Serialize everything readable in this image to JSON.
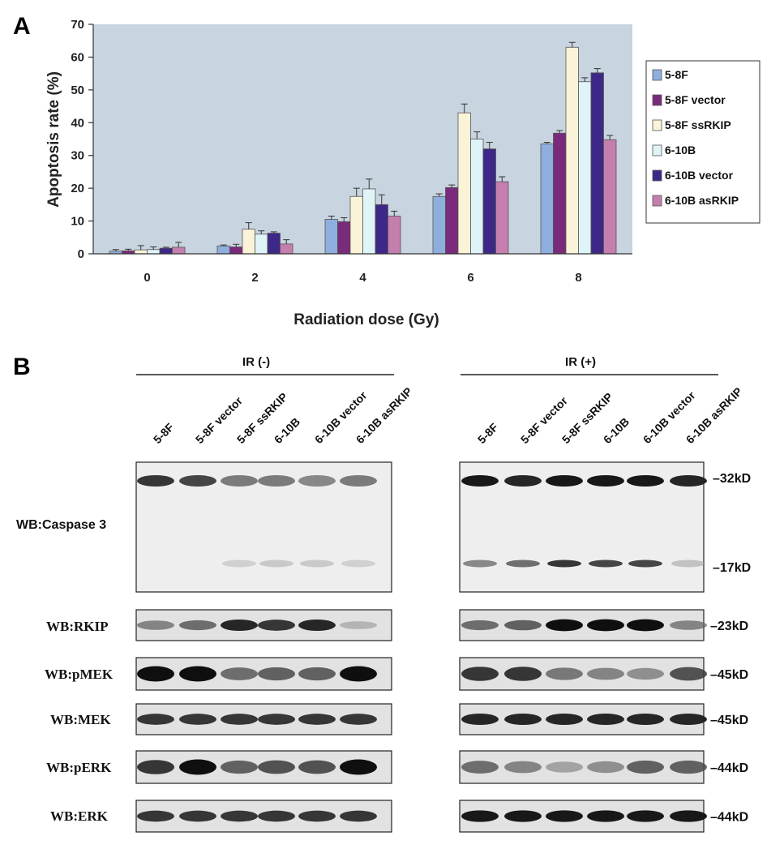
{
  "panel_a": {
    "letter": "A",
    "chart_data": {
      "type": "bar",
      "xlabel": "Radiation dose (Gy)",
      "ylabel": "Apoptosis rate (%)",
      "ylim": [
        0,
        70
      ],
      "yticks": [
        0,
        10,
        20,
        30,
        40,
        50,
        60,
        70
      ],
      "categories": [
        "0",
        "2",
        "4",
        "6",
        "8"
      ],
      "legend_position": "right",
      "grid": false,
      "plot_background": "#c8d4e0",
      "series": [
        {
          "name": "5-8F",
          "color": "#8eaedd",
          "values": [
            0.8,
            2.4,
            10.5,
            17.5,
            33.5
          ],
          "errors": [
            0.5,
            0.3,
            1.0,
            0.8,
            0.5
          ]
        },
        {
          "name": "5-8F vector",
          "color": "#7a2a7a",
          "values": [
            0.9,
            2.1,
            9.8,
            20.2,
            36.8
          ],
          "errors": [
            0.5,
            0.8,
            1.2,
            0.8,
            0.8
          ]
        },
        {
          "name": "5-8F ssRKIP",
          "color": "#fbf3d8",
          "values": [
            1.2,
            7.5,
            17.5,
            43.0,
            63.0
          ],
          "errors": [
            1.3,
            2.0,
            2.5,
            2.7,
            1.5
          ]
        },
        {
          "name": "6-10B",
          "color": "#dff4f7",
          "values": [
            1.3,
            6.0,
            19.8,
            35.0,
            52.5
          ],
          "errors": [
            0.8,
            1.0,
            3.0,
            2.2,
            1.2
          ]
        },
        {
          "name": "6-10B vector",
          "color": "#3e2887",
          "values": [
            1.7,
            6.3,
            15.0,
            32.0,
            55.2
          ],
          "errors": [
            0.3,
            0.4,
            3.0,
            2.0,
            1.3
          ]
        },
        {
          "name": "6-10B asRKIP",
          "color": "#c47fae",
          "values": [
            2.0,
            3.0,
            11.5,
            22.0,
            34.8
          ],
          "errors": [
            1.5,
            1.3,
            1.5,
            1.5,
            1.3
          ]
        }
      ]
    }
  },
  "panel_b": {
    "letter": "B",
    "groups": [
      "IR (-)",
      "IR (+)"
    ],
    "lanes": [
      "5-8F",
      "5-8F vector",
      "5-8F ssRKIP",
      "6-10B",
      "6-10B vector",
      "6-10B asRKIP"
    ],
    "blots": [
      {
        "label": "WB:Caspase 3",
        "kd": [
          "32kD",
          "17kD"
        ]
      },
      {
        "label": "WB:RKIP",
        "kd": [
          "23kD"
        ]
      },
      {
        "label": "WB:pMEK",
        "kd": [
          "45kD"
        ]
      },
      {
        "label": "WB:MEK",
        "kd": [
          "45kD"
        ]
      },
      {
        "label": "WB:pERK",
        "kd": [
          "44kD"
        ]
      },
      {
        "label": "WB:ERK",
        "kd": [
          "44kD"
        ]
      }
    ],
    "band_intensity": {
      "ir_minus": {
        "caspase3_32": [
          0.85,
          0.8,
          0.6,
          0.6,
          0.55,
          0.6
        ],
        "caspase3_17": [
          0.0,
          0.0,
          0.15,
          0.2,
          0.2,
          0.15
        ],
        "rkip": [
          0.55,
          0.65,
          0.9,
          0.85,
          0.9,
          0.3
        ],
        "pmek": [
          1.0,
          1.0,
          0.65,
          0.7,
          0.7,
          1.0
        ],
        "mek": [
          0.85,
          0.85,
          0.85,
          0.85,
          0.85,
          0.85
        ],
        "perk": [
          0.85,
          1.0,
          0.7,
          0.75,
          0.75,
          1.0
        ],
        "erk": [
          0.85,
          0.85,
          0.85,
          0.85,
          0.85,
          0.85
        ]
      },
      "ir_plus": {
        "caspase3_32": [
          0.95,
          0.9,
          0.95,
          0.95,
          0.95,
          0.9
        ],
        "caspase3_17": [
          0.55,
          0.65,
          0.85,
          0.8,
          0.8,
          0.25
        ],
        "rkip": [
          0.65,
          0.7,
          1.0,
          1.0,
          1.0,
          0.55
        ],
        "pmek": [
          0.85,
          0.85,
          0.6,
          0.55,
          0.5,
          0.75
        ],
        "mek": [
          0.9,
          0.9,
          0.9,
          0.9,
          0.9,
          0.9
        ],
        "perk": [
          0.65,
          0.55,
          0.4,
          0.5,
          0.7,
          0.7
        ],
        "erk": [
          0.95,
          0.95,
          0.95,
          0.95,
          0.95,
          0.95
        ]
      }
    }
  }
}
